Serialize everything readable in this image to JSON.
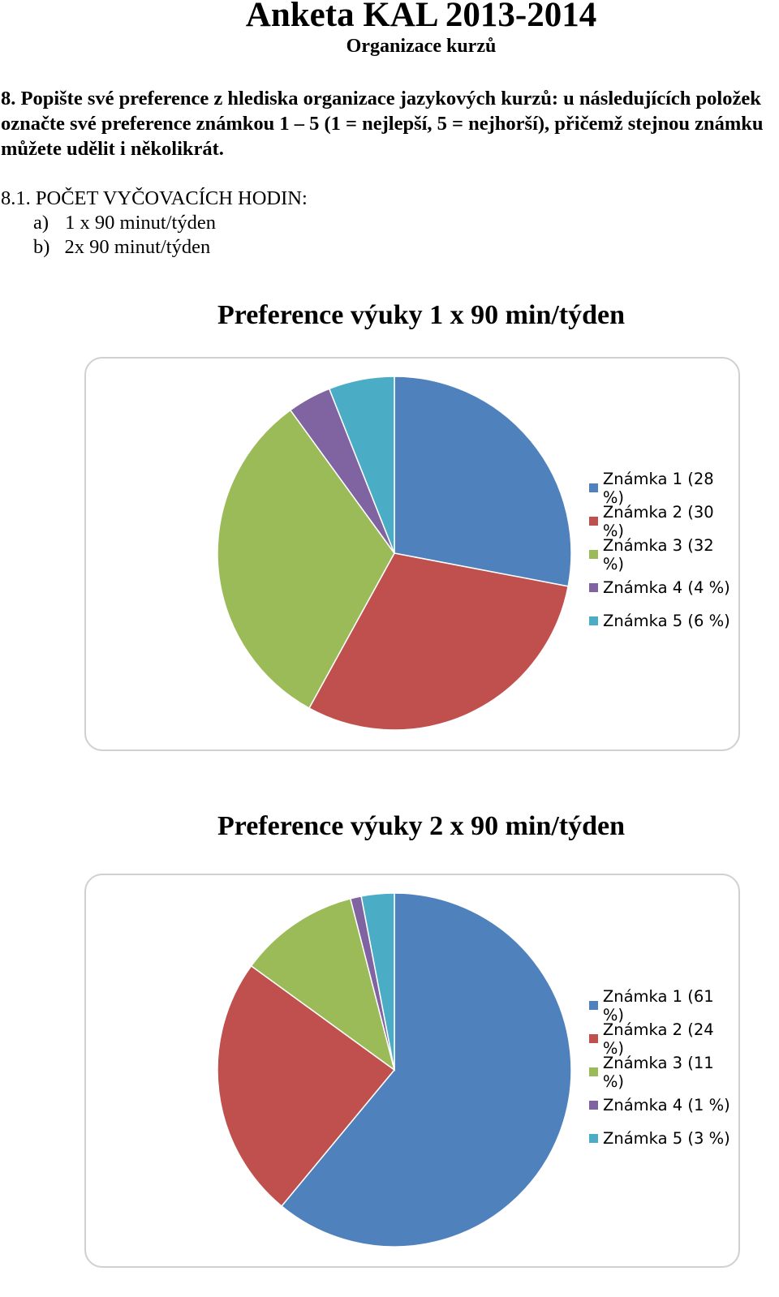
{
  "header": {
    "title": "Anketa KAL 2013-2014",
    "subtitle": "Organizace kurzů"
  },
  "question": "8. Popište své preference z hlediska organizace jazykových kurzů: u následujících položek označte své preference známkou 1 – 5 (1 = nejlepší, 5 = nejhorší), přičemž stejnou známku můžete udělit i několikrát.",
  "section": {
    "heading": "8.1. POČET VYČOVACÍCH HODIN:",
    "options": [
      {
        "marker": "a)",
        "text": "1 x 90 minut/týden"
      },
      {
        "marker": "b)",
        "text": "2x 90 minut/týden"
      }
    ]
  },
  "colors": [
    "#4f81bd",
    "#c0504d",
    "#9bbb59",
    "#8064a2",
    "#4bacc6"
  ],
  "chart_data": [
    {
      "type": "pie",
      "title": "Preference výuky 1 x 90 min/týden",
      "categories": [
        "Známka 1 (28 %)",
        "Známka 2 (30 %)",
        "Známka 3 (32 %)",
        "Známka 4 (4 %)",
        "Známka 5 (6 %)"
      ],
      "values": [
        28,
        30,
        32,
        4,
        6
      ],
      "legend": "right"
    },
    {
      "type": "pie",
      "title": "Preference výuky 2 x 90 min/týden",
      "categories": [
        "Známka 1 (61 %)",
        "Známka 2 (24 %)",
        "Známka 3 (11 %)",
        "Známka 4 (1 %)",
        "Známka 5 (3 %)"
      ],
      "values": [
        61,
        24,
        11,
        1,
        3
      ],
      "legend": "right"
    }
  ]
}
